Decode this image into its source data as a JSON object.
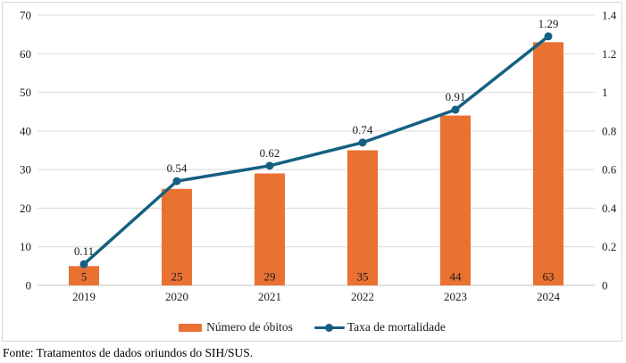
{
  "chart_data": {
    "type": "combo",
    "categories": [
      "2019",
      "2020",
      "2021",
      "2022",
      "2023",
      "2024"
    ],
    "series": [
      {
        "name": "Número de óbitos",
        "type": "bar",
        "axis": "left",
        "values": [
          5,
          25,
          29,
          35,
          44,
          63
        ],
        "data_labels": [
          "5",
          "25",
          "29",
          "35",
          "44",
          "63"
        ],
        "label_position": "inside-base",
        "color": "#E97132"
      },
      {
        "name": "Taxa de mortalidade",
        "type": "line",
        "axis": "right",
        "values": [
          0.11,
          0.54,
          0.62,
          0.74,
          0.91,
          1.29
        ],
        "data_labels": [
          "0.11",
          "0.54",
          "0.62",
          "0.74",
          "0.91",
          "1.29"
        ],
        "label_position": "above",
        "color": "#156082"
      }
    ],
    "title": "",
    "xlabel": "",
    "ylabel": "",
    "left_axis": {
      "min": 0,
      "max": 70,
      "step": 10,
      "ticks": [
        "0",
        "10",
        "20",
        "30",
        "40",
        "50",
        "60",
        "70"
      ]
    },
    "right_axis": {
      "min": 0,
      "max": 1.4,
      "step": 0.2,
      "ticks": [
        "0",
        "0.2",
        "0.4",
        "0.6",
        "0.8",
        "1",
        "1.2",
        "1.4"
      ]
    },
    "grid": true,
    "legend_position": "bottom"
  },
  "colors": {
    "bar": "#E97132",
    "line": "#156082",
    "gridline": "#D9D9D9",
    "axis_line": "#BFBFBF",
    "border": "#D6D6D6",
    "text": "#1a1a1a"
  },
  "footer": {
    "source": "Fonte: Tratamentos de dados oriundos do SIH/SUS."
  }
}
